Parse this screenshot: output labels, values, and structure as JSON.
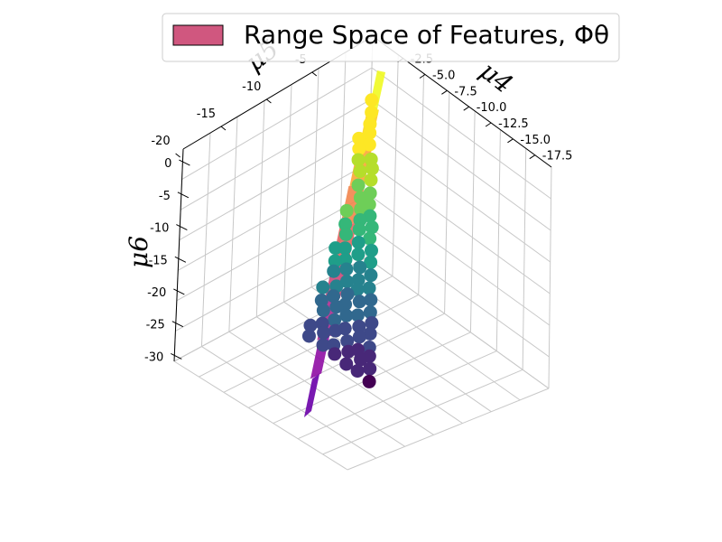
{
  "chart_data": {
    "type": "scatter",
    "projection": "3d",
    "grid": true,
    "legend": {
      "placement": "top-right",
      "label": "Range Space of Features, Φθ",
      "color": "#d0577f"
    },
    "axes": {
      "x": {
        "label": "μ4",
        "ticks": [
          "-2.5",
          "-5.0",
          "-7.5",
          "-10.0",
          "-12.5",
          "-15.0",
          "-17.5"
        ]
      },
      "y": {
        "label": "μ5",
        "ticks": [
          "-5",
          "-10",
          "-15",
          "-20"
        ]
      },
      "z": {
        "label": "μ6",
        "ticks": [
          "0",
          "-5",
          "-10",
          "-15",
          "-20",
          "-25",
          "-30"
        ]
      }
    },
    "colormap": "viridis",
    "plane_colormap": "plasma"
  }
}
